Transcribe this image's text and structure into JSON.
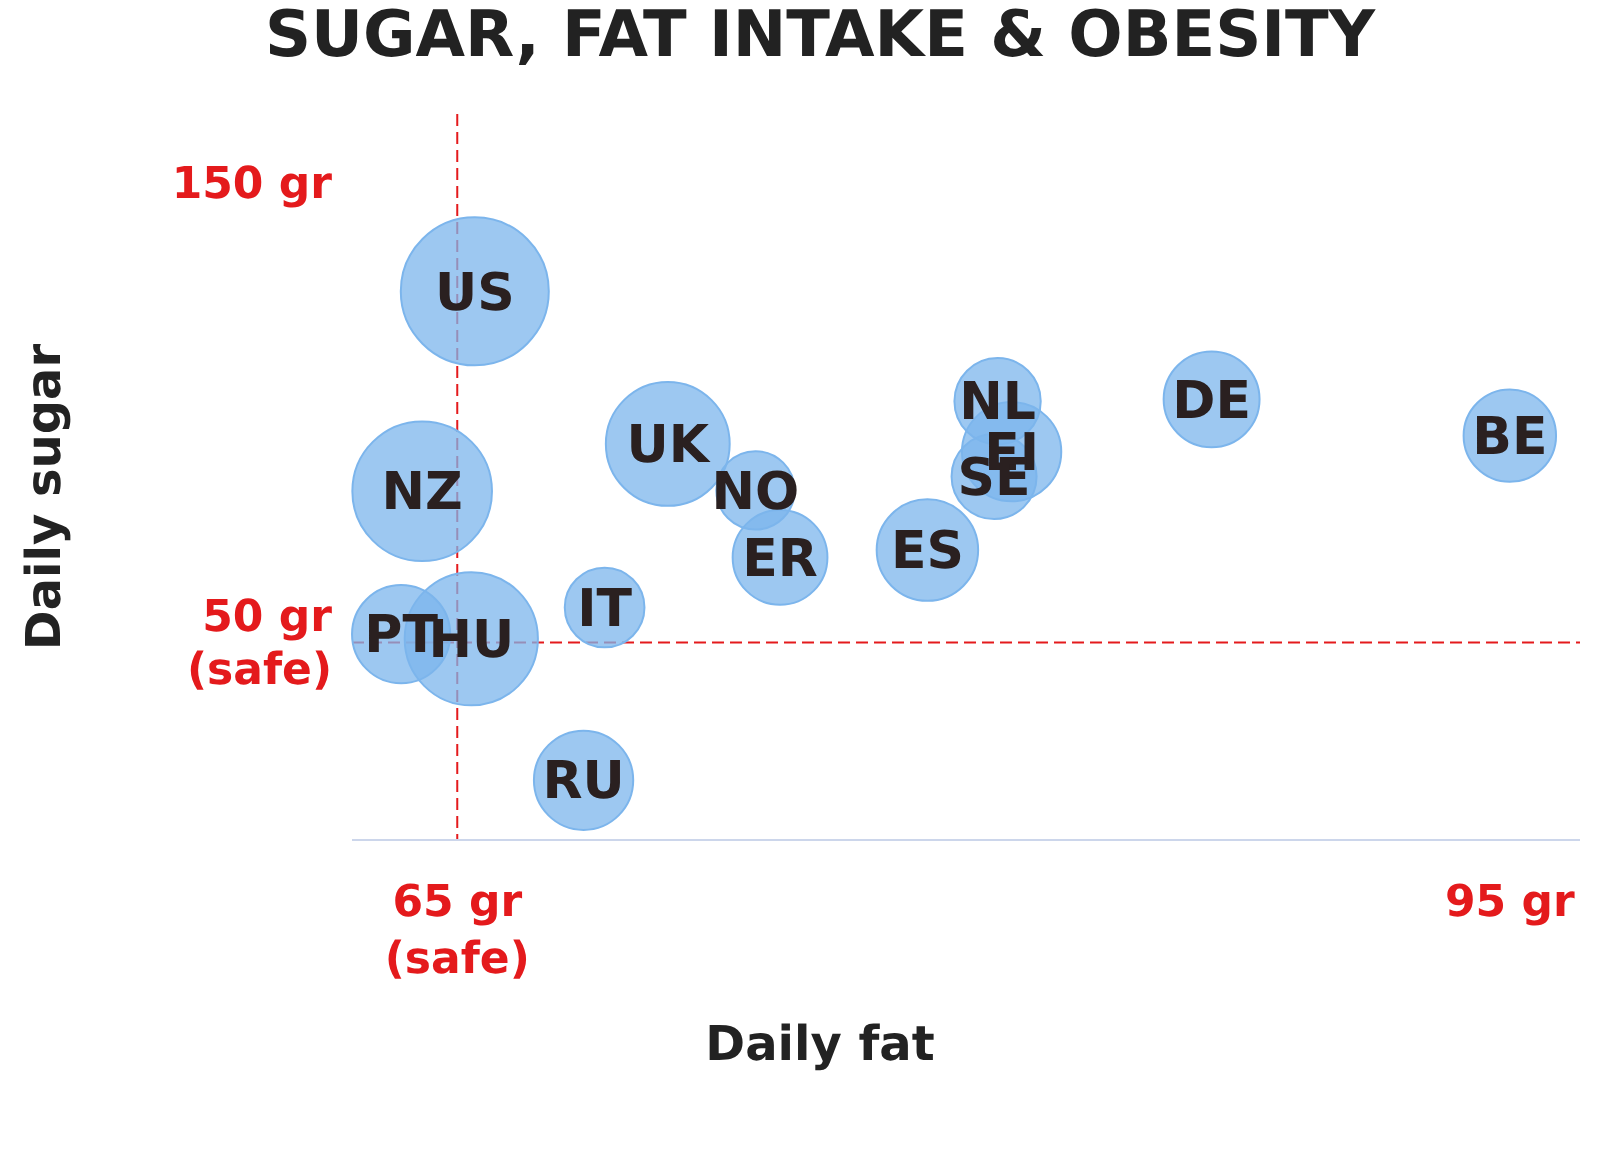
{
  "chart_data": {
    "type": "bubble",
    "title": "SUGAR, FAT INTAKE & OBESITY",
    "xlabel": "Daily fat",
    "ylabel": "Daily sugar",
    "x": [
      95,
      86.5,
      80.8,
      80.4,
      80.3,
      78.4,
      74.2,
      73.5,
      71,
      69.2,
      68.6,
      65.5,
      65.4,
      63.4,
      64
    ],
    "values": [
      95,
      102.9,
      91.5,
      102.5,
      86.1,
      70.1,
      68.5,
      83.1,
      93.2,
      57.6,
      20,
      126.4,
      50.8,
      51.8,
      82.9
    ],
    "sizes": [
      0.39,
      0.42,
      0.45,
      0.34,
      0.33,
      0.47,
      0.41,
      0.28,
      0.7,
      0.29,
      0.45,
      1,
      0.81,
      0.44,
      0.89
    ],
    "color": "#7cb5ec",
    "xlim": [
      62,
      97
    ],
    "xticks": [
      {
        "value": 65,
        "label": "65 gr (safe)"
      },
      {
        "value": 95,
        "label": "95 gr"
      }
    ],
    "ylim": [
      7,
      165
    ],
    "yticks": [
      {
        "value": 50,
        "label": "50 gr (safe)"
      },
      {
        "value": 150,
        "label": "150 gr"
      }
    ],
    "grid": false,
    "ref_lines": [
      {
        "axis": "x",
        "value": 65,
        "color": "#e41a1c",
        "line_style": "dashed"
      },
      {
        "axis": "y",
        "value": 50,
        "color": "#e41a1c",
        "line_style": "dashed"
      }
    ],
    "annotations": [
      {
        "text": "BE",
        "x": 95,
        "y": 95
      },
      {
        "text": "DE",
        "x": 86.5,
        "y": 102.9
      },
      {
        "text": "EI",
        "x": 80.8,
        "y": 91.5
      },
      {
        "text": "NL",
        "x": 80.4,
        "y": 102.5
      },
      {
        "text": "SE",
        "x": 80.3,
        "y": 86.1
      },
      {
        "text": "ES",
        "x": 78.4,
        "y": 70.1
      },
      {
        "text": "ER",
        "x": 74.2,
        "y": 68.5
      },
      {
        "text": "NO",
        "x": 73.5,
        "y": 83.1
      },
      {
        "text": "UK",
        "x": 71,
        "y": 93.2
      },
      {
        "text": "IT",
        "x": 69.2,
        "y": 57.6
      },
      {
        "text": "RU",
        "x": 68.6,
        "y": 20
      },
      {
        "text": "US",
        "x": 65.5,
        "y": 126.4
      },
      {
        "text": "HU",
        "x": 65.4,
        "y": 50.8
      },
      {
        "text": "PT",
        "x": 63.4,
        "y": 51.8
      },
      {
        "text": "NZ",
        "x": 64,
        "y": 82.9
      }
    ]
  }
}
